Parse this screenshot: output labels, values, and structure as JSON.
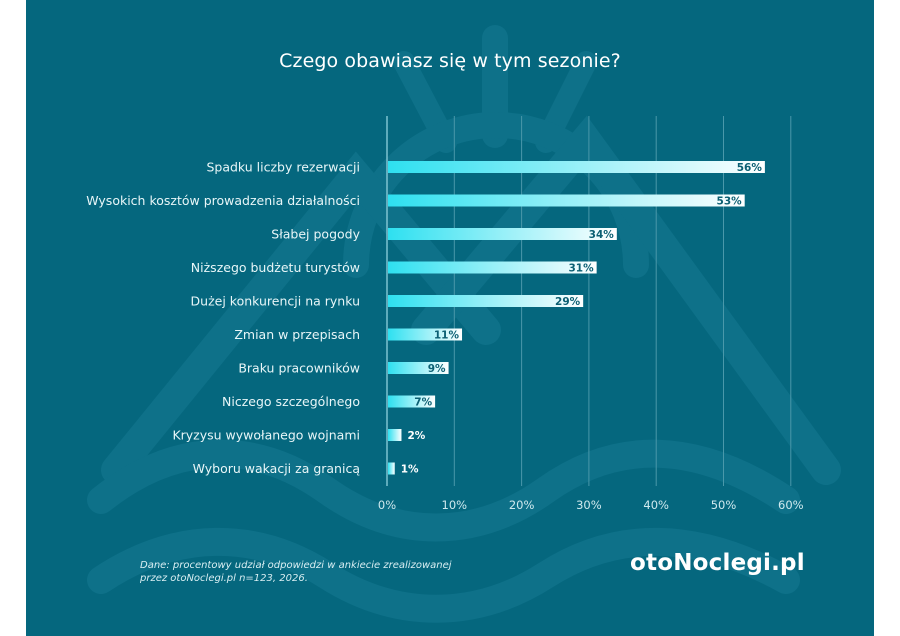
{
  "colors": {
    "background": "#05677e",
    "decoration": "#0e7189",
    "bar_start": "#2ee0f0",
    "bar_end": "#ffffff",
    "gridline": "#4a98aa",
    "value_label_inside": "#0b5f73"
  },
  "chart_data": {
    "type": "bar",
    "orientation": "horizontal",
    "title": "Czego obawiasz się w tym sezonie?",
    "categories": [
      "Spadku liczby rezerwacji",
      "Wysokich kosztów prowadzenia działalności",
      "Słabej pogody",
      "Niższego budżetu turystów",
      "Dużej konkurencji na rynku",
      "Zmian w przepisach",
      "Braku pracowników",
      "Niczego szczególnego",
      "Kryzysu wywołanego wojnami",
      "Wyboru wakacji za granicą"
    ],
    "values": [
      56,
      53,
      34,
      31,
      29,
      11,
      9,
      7,
      2,
      1
    ],
    "value_labels": [
      "56%",
      "53%",
      "34%",
      "31%",
      "29%",
      "11%",
      "9%",
      "7%",
      "2%",
      "1%"
    ],
    "xlabel": "",
    "ylabel": "",
    "xlim": [
      0,
      60
    ],
    "xticks": [
      0,
      10,
      20,
      30,
      40,
      50,
      60
    ],
    "xtick_labels": [
      "0%",
      "10%",
      "20%",
      "30%",
      "40%",
      "50%",
      "60%"
    ],
    "grid": true,
    "legend": "none"
  },
  "footer": {
    "source_line1": "Dane: procentowy udział odpowiedzi w ankiecie zrealizowanej",
    "source_line2": "przez otoNoclegi.pl n=123, 2026.",
    "logo_text": "otoNoclegi.pl"
  }
}
